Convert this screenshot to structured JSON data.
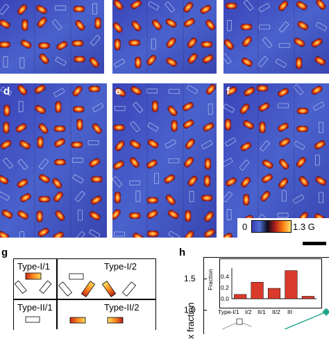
{
  "panel_labels": {
    "d": "d",
    "e": "e",
    "f": "f",
    "g": "g",
    "h": "h"
  },
  "colorbar": {
    "min": "0",
    "max": "1.3 G",
    "colors": [
      "#3b3fb2",
      "#4e6fd4",
      "#0b0b1a",
      "#b0201e",
      "#ff7d12",
      "#ffe36a"
    ]
  },
  "legend_types": {
    "t11": "Type-I/1",
    "t12": "Type-I/2",
    "t21": "Type-II/1",
    "t22": "Type-II/2"
  },
  "axis_h": {
    "ylabel": "x fraction",
    "yticks": [
      "1.5",
      "1.0"
    ]
  },
  "chart_data": {
    "type": "bar",
    "ylabel": "Fraction",
    "categories": [
      "Type-I/1",
      "I/2",
      "II/1",
      "II/2",
      "III"
    ],
    "values": [
      0.07,
      0.27,
      0.17,
      0.46,
      0.04
    ],
    "yticks": [
      "0.4",
      "0.2",
      "0.0"
    ],
    "ylim": [
      0,
      0.5
    ],
    "bar_color": "#d93a2b"
  }
}
